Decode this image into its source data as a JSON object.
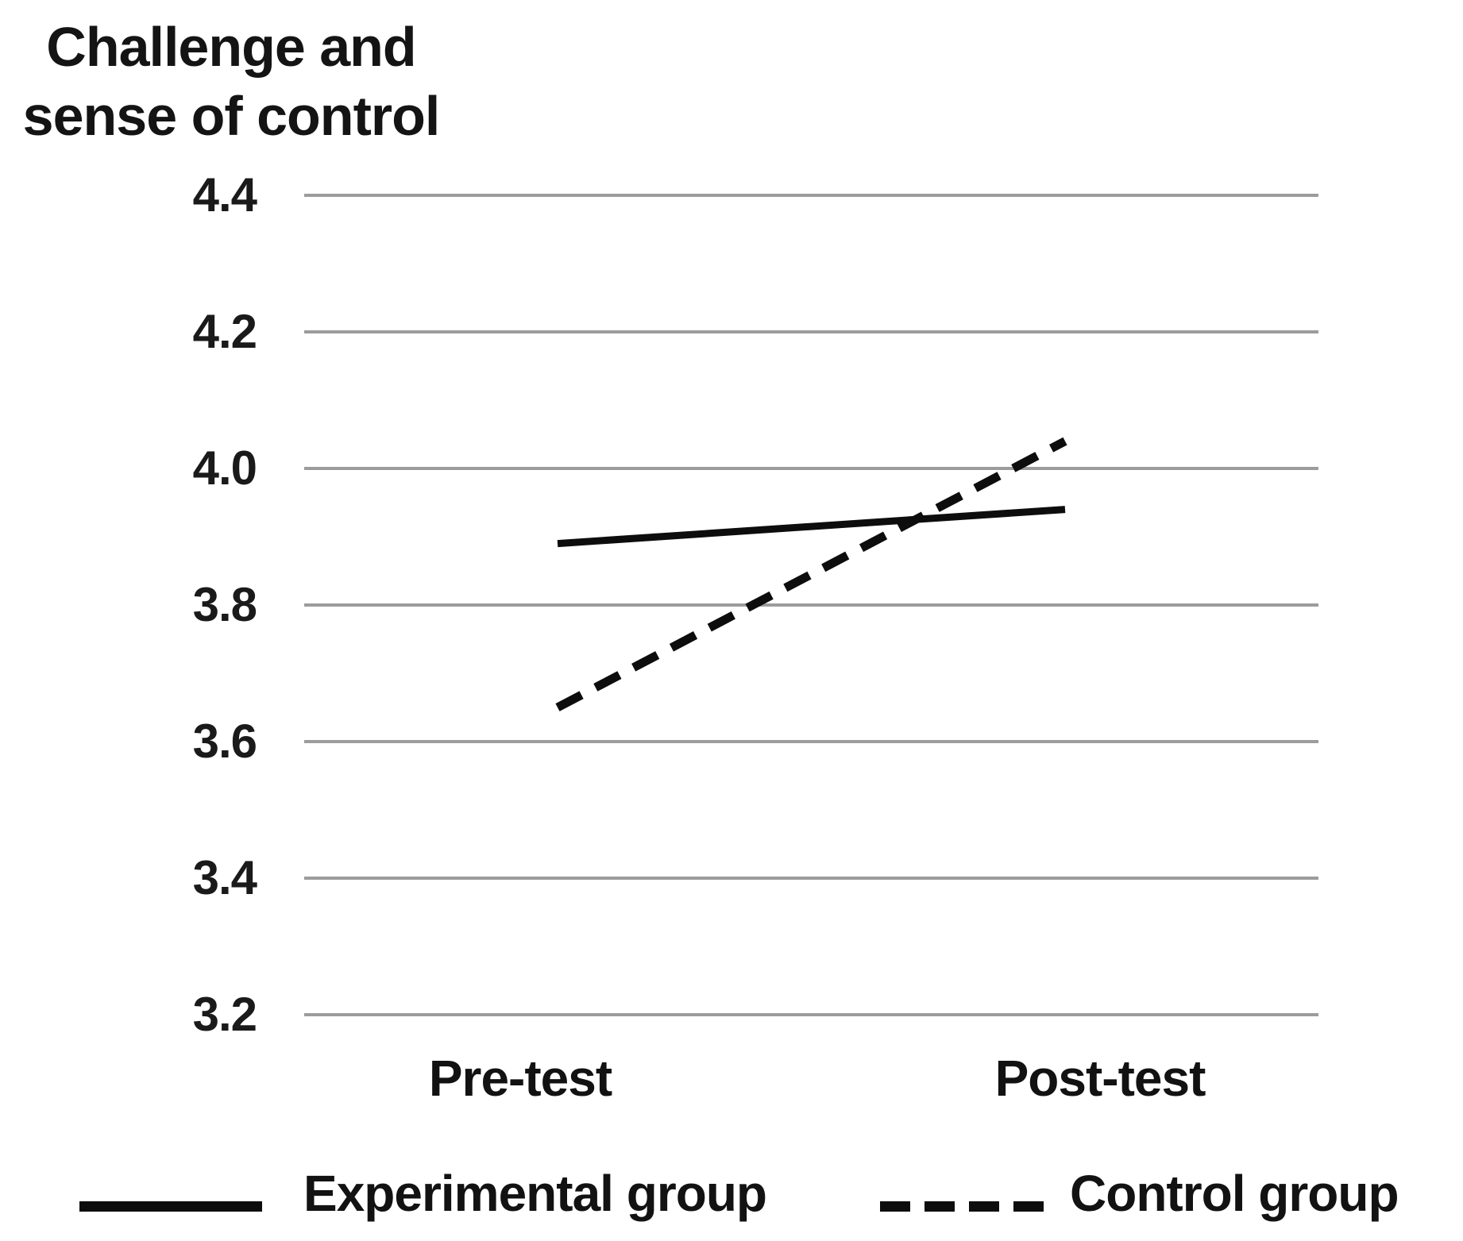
{
  "title": {
    "line1": "Challenge and",
    "line2": "sense of control"
  },
  "chart_data": {
    "type": "line",
    "categories": [
      "Pre-test",
      "Post-test"
    ],
    "series": [
      {
        "name": "Experimental group",
        "style": "solid",
        "values": [
          3.89,
          3.94
        ]
      },
      {
        "name": "Control group",
        "style": "dashed",
        "values": [
          3.65,
          4.04
        ]
      }
    ],
    "title": "Challenge and sense of control",
    "xlabel": "",
    "ylabel": "Challenge and sense of control",
    "ylim": [
      3.2,
      4.4
    ],
    "yticks": [
      4.4,
      4.2,
      4.0,
      3.8,
      3.6,
      3.4,
      3.2
    ],
    "grid": "horizontal",
    "legend_position": "bottom"
  },
  "legend": {
    "items": [
      {
        "label": "Experimental group",
        "style": "solid"
      },
      {
        "label": "Control group",
        "style": "dashed"
      }
    ]
  },
  "colors": {
    "series_line": "#0d0d0d",
    "gridline": "#9c9c9c",
    "text": "#141414",
    "background": "#ffffff"
  }
}
